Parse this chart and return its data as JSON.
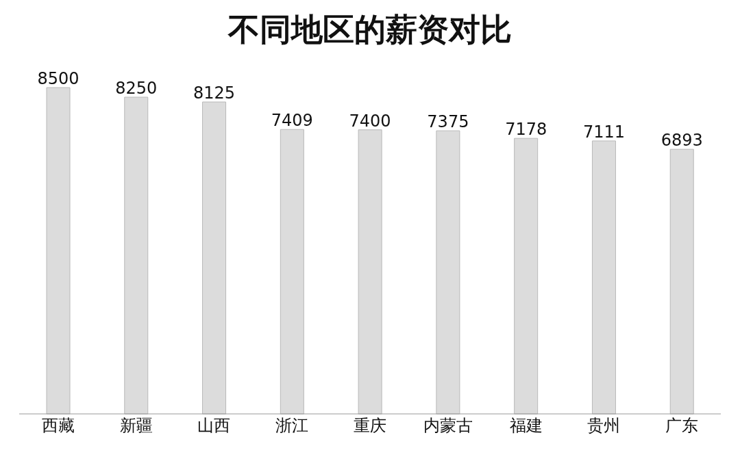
{
  "chart_data": {
    "type": "bar",
    "title": "不同地区的薪资对比",
    "categories": [
      "西藏",
      "新疆",
      "山西",
      "浙江",
      "重庆",
      "内蒙古",
      "福建",
      "贵州",
      "广东"
    ],
    "values": [
      8500,
      8250,
      8125,
      7409,
      7400,
      7375,
      7178,
      7111,
      6893
    ],
    "color": "#dcdcdc",
    "data_labels": true,
    "grid": false,
    "legend": false
  }
}
